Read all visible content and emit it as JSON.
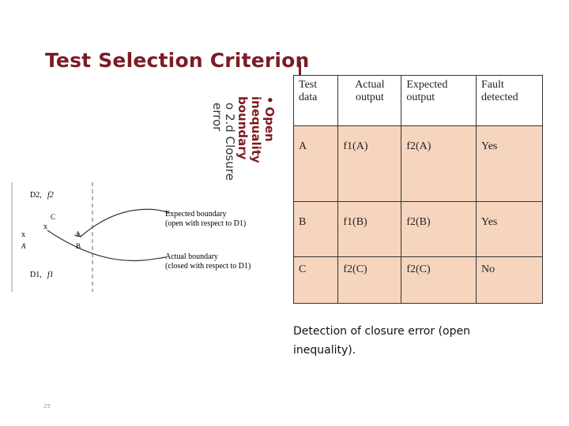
{
  "slide": {
    "title": "Test Selection Criterion",
    "bullet": {
      "marker": "•",
      "text": "Open inequality boundary",
      "sub_marker": "o",
      "sub_number": "2.d",
      "sub_text": "Closure error"
    },
    "caption": "Detection of closure error (open inequality).",
    "page_number": "25"
  },
  "diagram": {
    "top_label_region": "D2,",
    "top_label_func": "f2",
    "bottom_label_region": "D1,",
    "bottom_label_func": "f1",
    "point_a_mark": "x",
    "point_a_label": "A",
    "point_b_mark": "x",
    "point_b_label": "B",
    "point_c_mark": "x",
    "point_c_label": "C",
    "expected_boundary_label_1": "Expected boundary",
    "expected_boundary_label_2": "(open with respect to D1)",
    "actual_boundary_label_1": "Actual boundary",
    "actual_boundary_label_2": "(closed with respect to D1)"
  },
  "table": {
    "headers": [
      "Test data",
      "Actual output",
      "Expected output",
      "Fault detected"
    ],
    "rows": [
      [
        "A",
        "f1(A)",
        "f2(A)",
        "Yes"
      ],
      [
        "B",
        "f1(B)",
        "f2(B)",
        "Yes"
      ],
      [
        "C",
        "f2(C)",
        "f2(C)",
        "No"
      ]
    ]
  },
  "colors": {
    "title": "#7b1c24",
    "table_body_fill": "#f6d5be"
  }
}
